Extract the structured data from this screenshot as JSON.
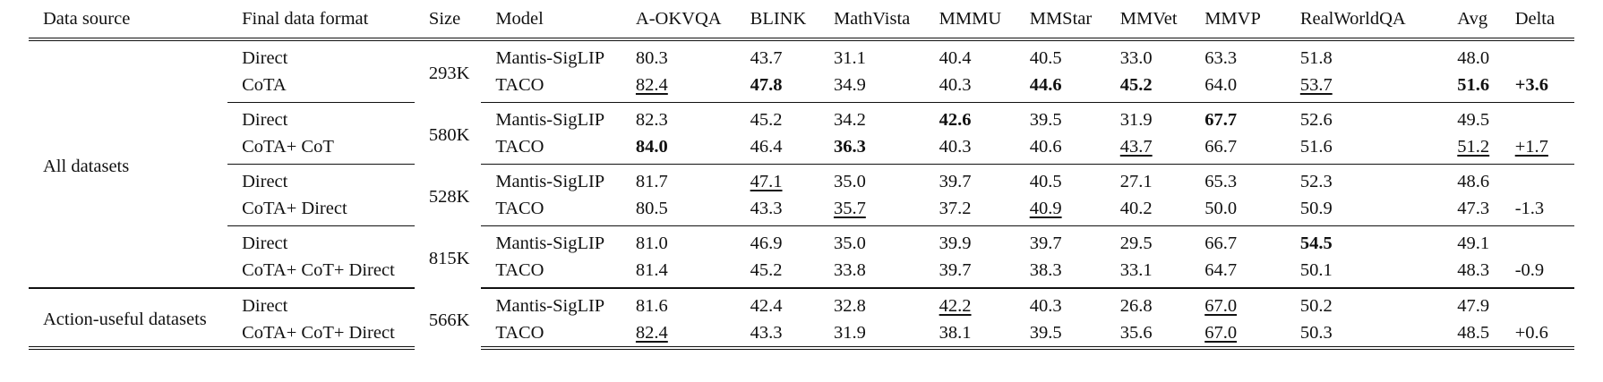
{
  "columns": [
    "Data source",
    "Final data format",
    "Size",
    "Model",
    "A-OKVQA",
    "BLINK",
    "MathVista",
    "MMMU",
    "MMStar",
    "MMVet",
    "MMVP",
    "RealWorldQA",
    "Avg",
    "Delta"
  ],
  "groups": [
    {
      "source": "All datasets",
      "blocks": [
        {
          "size": "293K",
          "rows": [
            {
              "format": "Direct",
              "model": "Mantis-SigLIP",
              "values": [
                "80.3",
                "43.7",
                "31.1",
                "40.4",
                "40.5",
                "33.0",
                "63.3",
                "51.8",
                "48.0",
                ""
              ]
            },
            {
              "format": "CoTA",
              "model": "TACO",
              "values": [
                "82.4",
                "47.8",
                "34.9",
                "40.3",
                "44.6",
                "45.2",
                "64.0",
                "53.7",
                "51.6",
                "+3.6"
              ]
            }
          ]
        },
        {
          "size": "580K",
          "rows": [
            {
              "format": "Direct",
              "model": "Mantis-SigLIP",
              "values": [
                "82.3",
                "45.2",
                "34.2",
                "42.6",
                "39.5",
                "31.9",
                "67.7",
                "52.6",
                "49.5",
                ""
              ]
            },
            {
              "format": "CoTA+ CoT",
              "model": "TACO",
              "values": [
                "84.0",
                "46.4",
                "36.3",
                "40.3",
                "40.6",
                "43.7",
                "66.7",
                "51.6",
                "51.2",
                "+1.7"
              ]
            }
          ]
        },
        {
          "size": "528K",
          "rows": [
            {
              "format": "Direct",
              "model": "Mantis-SigLIP",
              "values": [
                "81.7",
                "47.1",
                "35.0",
                "39.7",
                "40.5",
                "27.1",
                "65.3",
                "52.3",
                "48.6",
                ""
              ]
            },
            {
              "format": "CoTA+ Direct",
              "model": "TACO",
              "values": [
                "80.5",
                "43.3",
                "35.7",
                "37.2",
                "40.9",
                "40.2",
                "50.0",
                "50.9",
                "47.3",
                "-1.3"
              ]
            }
          ]
        },
        {
          "size": "815K",
          "rows": [
            {
              "format": "Direct",
              "model": "Mantis-SigLIP",
              "values": [
                "81.0",
                "46.9",
                "35.0",
                "39.9",
                "39.7",
                "29.5",
                "66.7",
                "54.5",
                "49.1",
                ""
              ]
            },
            {
              "format": "CoTA+ CoT+ Direct",
              "model": "TACO",
              "values": [
                "81.4",
                "45.2",
                "33.8",
                "39.7",
                "38.3",
                "33.1",
                "64.7",
                "50.1",
                "48.3",
                "-0.9"
              ]
            }
          ]
        }
      ]
    },
    {
      "source": "Action-useful datasets",
      "blocks": [
        {
          "size": "566K",
          "rows": [
            {
              "format": "Direct",
              "model": "Mantis-SigLIP",
              "values": [
                "81.6",
                "42.4",
                "32.8",
                "42.2",
                "40.3",
                "26.8",
                "67.0",
                "50.2",
                "47.9",
                ""
              ]
            },
            {
              "format": "CoTA+ CoT+ Direct",
              "model": "TACO",
              "values": [
                "82.4",
                "43.3",
                "31.9",
                "38.1",
                "39.5",
                "35.6",
                "67.0",
                "50.3",
                "48.5",
                "+0.6"
              ]
            }
          ]
        }
      ]
    }
  ],
  "styles": {
    "bold": [
      "0-0-1-1",
      "0-0-1-4",
      "0-0-1-5",
      "0-0-1-8",
      "0-0-1-9",
      "0-1-0-3",
      "0-1-0-6",
      "0-1-1-0",
      "0-1-1-2",
      "0-3-0-7"
    ],
    "underline": [
      "0-0-1-0",
      "0-0-1-7",
      "0-1-1-5",
      "0-1-1-8",
      "0-1-1-9",
      "0-2-0-1",
      "0-2-1-2",
      "0-2-1-4",
      "1-0-0-3",
      "1-0-0-6",
      "1-0-1-0",
      "1-0-1-6"
    ]
  }
}
